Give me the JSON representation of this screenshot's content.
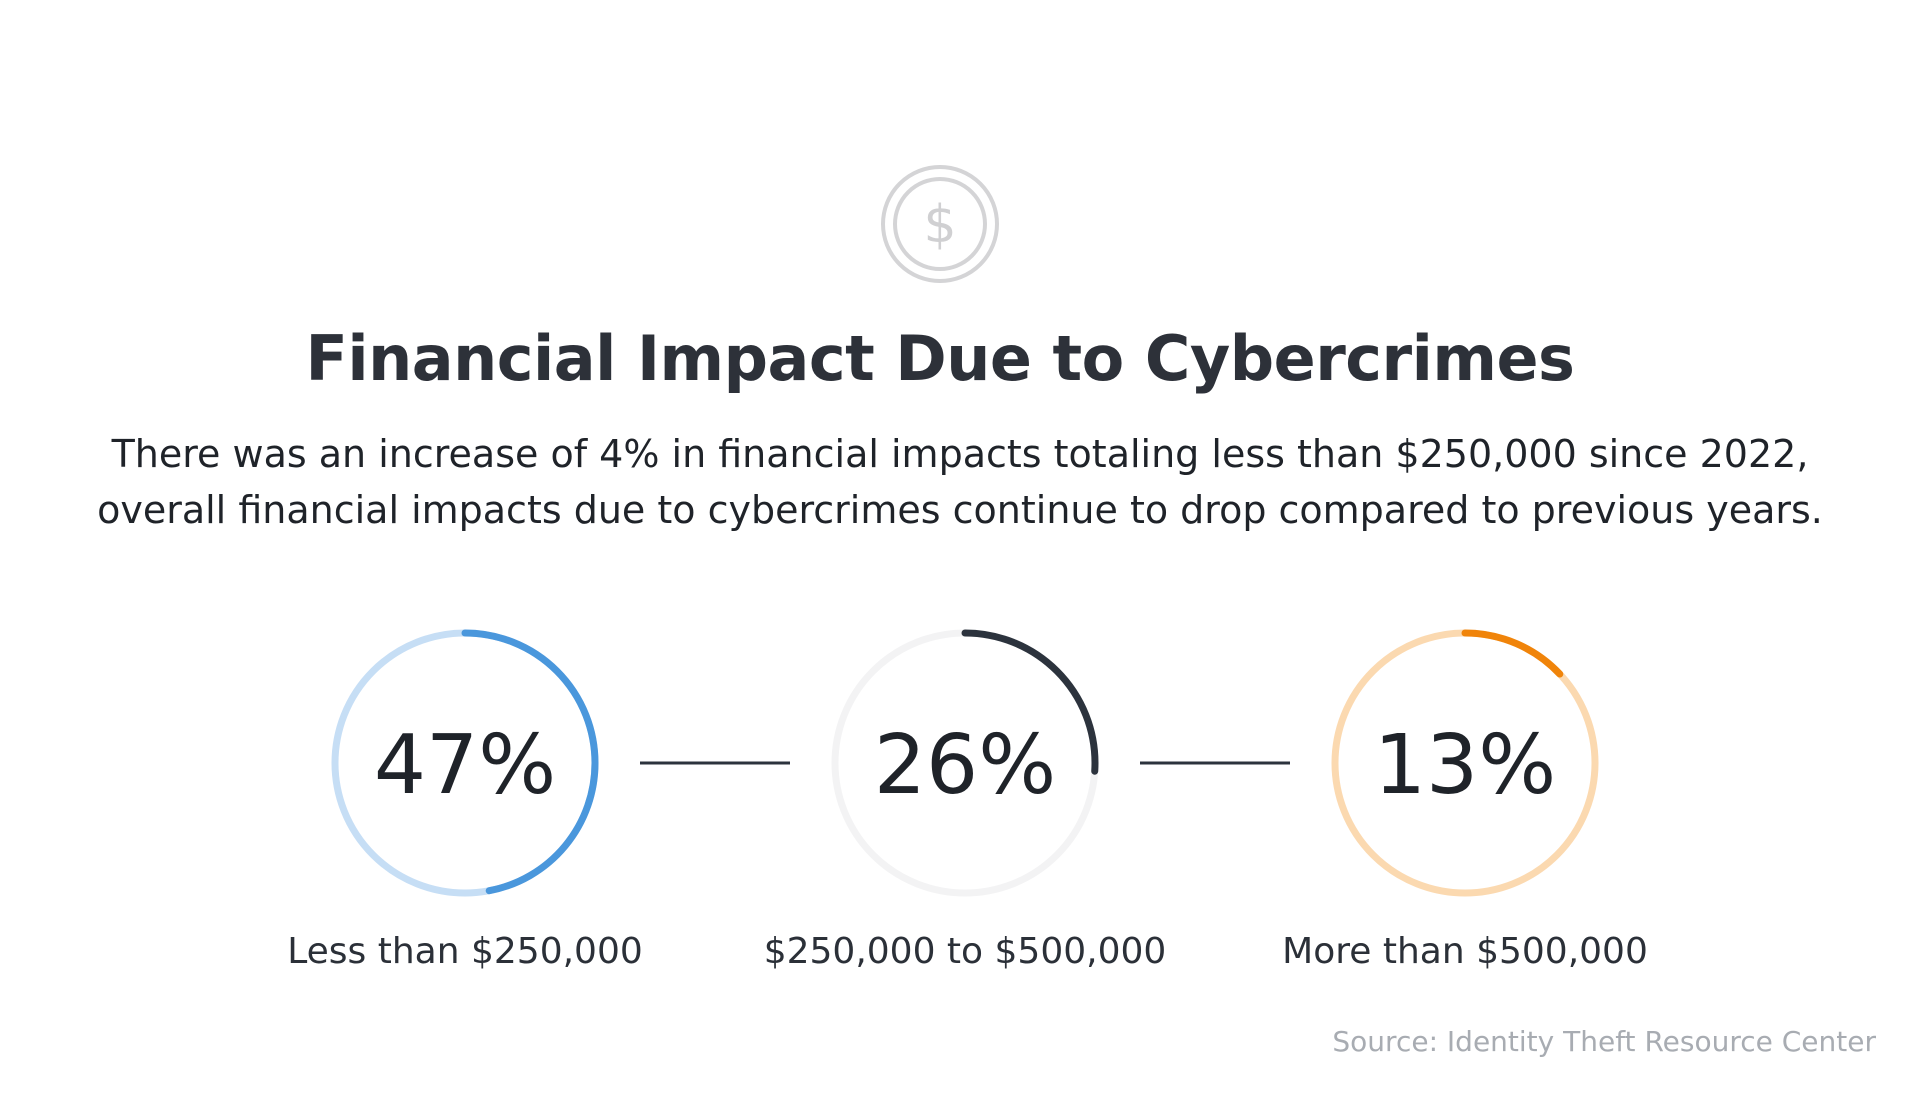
{
  "header": {
    "icon": "dollar-coin-icon",
    "title": "Financial Impact Due to Cybercrimes",
    "subtitle_line1": "There was an increase of 4% in financial impacts totaling less than $250,000 since 2022,",
    "subtitle_line2": "overall financial impacts due to cybercrimes continue to drop compared to previous years."
  },
  "chart_data": {
    "type": "pie",
    "style": "progress-rings",
    "categories": [
      "Less than $250,000",
      "$250,000 to $500,000",
      "More than $500,000"
    ],
    "values": [
      47,
      26,
      13
    ],
    "value_labels": [
      "47%",
      "26%",
      "13%"
    ],
    "unit": "%",
    "colors": [
      {
        "arc": "#4a97dc",
        "track": "#c6def5"
      },
      {
        "arc": "#2c333d",
        "track": "#f3f3f4"
      },
      {
        "arc": "#f0840a",
        "track": "#fbd9b0"
      }
    ]
  },
  "footer": {
    "source": "Source: Identity Theft Resource Center"
  }
}
